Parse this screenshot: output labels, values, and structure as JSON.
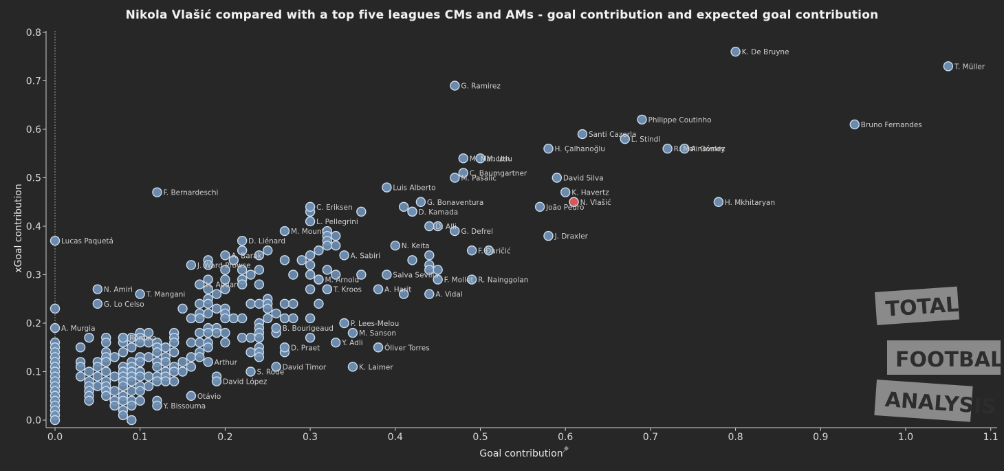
{
  "chart_data": {
    "type": "scatter",
    "title": "Nikola Vlašić compared with a top five leagues CMs and AMs - goal contribution and expected goal contribution",
    "xlabel": "Goal contribution",
    "ylabel": "xGoal contribution",
    "xlim": [
      -0.01,
      1.1
    ],
    "ylim": [
      -0.01,
      0.81
    ],
    "xticks": [
      "0.0",
      "0.1",
      "0.2",
      "0.3",
      "0.4",
      "0.5",
      "0.6",
      "0.7",
      "0.8",
      "0.9",
      "1.0",
      "1.1"
    ],
    "yticks": [
      "0.0",
      "0.1",
      "0.2",
      "0.3",
      "0.4",
      "0.5",
      "0.6",
      "0.7",
      "0.8"
    ],
    "grid": false,
    "colors": {
      "point": "#6f8fb3",
      "point_edge": "#c9dcef",
      "highlight": "#e05a5a",
      "background": "#272727"
    },
    "highlight_player": "N. Vlašić",
    "labeled_points": [
      {
        "name": "K. De Bruyne",
        "x": 0.8,
        "y": 0.76
      },
      {
        "name": "T. Müller",
        "x": 1.05,
        "y": 0.73
      },
      {
        "name": "G. Ramirez",
        "x": 0.47,
        "y": 0.69
      },
      {
        "name": "Philippe Coutinho",
        "x": 0.69,
        "y": 0.62
      },
      {
        "name": "Bruno Fernandes",
        "x": 0.94,
        "y": 0.61
      },
      {
        "name": "Santi Cazorla",
        "x": 0.62,
        "y": 0.59
      },
      {
        "name": "L. Stindl",
        "x": 0.67,
        "y": 0.58
      },
      {
        "name": "A. Gómez",
        "x": 0.74,
        "y": 0.56
      },
      {
        "name": "R. Malinovskiy",
        "x": 0.72,
        "y": 0.56
      },
      {
        "name": "H. Çalhanoğlu",
        "x": 0.58,
        "y": 0.56
      },
      {
        "name": "M. Mancosu",
        "x": 0.48,
        "y": 0.54
      },
      {
        "name": "M. Uth",
        "x": 0.5,
        "y": 0.54
      },
      {
        "name": "C. Baumgartner",
        "x": 0.48,
        "y": 0.51
      },
      {
        "name": "David Silva",
        "x": 0.59,
        "y": 0.5
      },
      {
        "name": "M. Pašalić",
        "x": 0.47,
        "y": 0.5
      },
      {
        "name": "Luis Alberto",
        "x": 0.39,
        "y": 0.48
      },
      {
        "name": "F. Bernardeschi",
        "x": 0.12,
        "y": 0.47
      },
      {
        "name": "K. Havertz",
        "x": 0.6,
        "y": 0.47
      },
      {
        "name": "N. Vlašić",
        "x": 0.61,
        "y": 0.45
      },
      {
        "name": "G. Bonaventura",
        "x": 0.43,
        "y": 0.45
      },
      {
        "name": "H. Mkhitaryan",
        "x": 0.78,
        "y": 0.45
      },
      {
        "name": "C. Eriksen",
        "x": 0.3,
        "y": 0.44
      },
      {
        "name": "João Pedro",
        "x": 0.57,
        "y": 0.44
      },
      {
        "name": "D. Kamada",
        "x": 0.42,
        "y": 0.43
      },
      {
        "name": "L. Pellegrini",
        "x": 0.3,
        "y": 0.41
      },
      {
        "name": "D. Alli",
        "x": 0.44,
        "y": 0.4
      },
      {
        "name": "J. Draxler",
        "x": 0.58,
        "y": 0.38
      },
      {
        "name": "Lucas Paquetá",
        "x": 0.0,
        "y": 0.37
      },
      {
        "name": "D. Liénard",
        "x": 0.22,
        "y": 0.37
      },
      {
        "name": "M. Mount",
        "x": 0.27,
        "y": 0.39
      },
      {
        "name": "A. Barák",
        "x": 0.2,
        "y": 0.34
      },
      {
        "name": "G. Defrel",
        "x": 0.47,
        "y": 0.39
      },
      {
        "name": "N. Keita",
        "x": 0.4,
        "y": 0.36
      },
      {
        "name": "A. Sabiri",
        "x": 0.34,
        "y": 0.34
      },
      {
        "name": "F. Đuričić",
        "x": 0.49,
        "y": 0.35
      },
      {
        "name": "J. Ward-Prowse",
        "x": 0.16,
        "y": 0.32
      },
      {
        "name": "Salva Sevilla",
        "x": 0.39,
        "y": 0.3
      },
      {
        "name": "F. Mollet",
        "x": 0.45,
        "y": 0.29
      },
      {
        "name": "R. Nainggolan",
        "x": 0.49,
        "y": 0.29
      },
      {
        "name": "N. Amiri",
        "x": 0.05,
        "y": 0.27
      },
      {
        "name": "T. Kroos",
        "x": 0.32,
        "y": 0.27
      },
      {
        "name": "M. Arnold",
        "x": 0.31,
        "y": 0.29
      },
      {
        "name": "H. Aouar",
        "x": 0.17,
        "y": 0.28
      },
      {
        "name": "T. Mangani",
        "x": 0.1,
        "y": 0.26
      },
      {
        "name": "A. Harit",
        "x": 0.38,
        "y": 0.27
      },
      {
        "name": "A. Vidal",
        "x": 0.44,
        "y": 0.26
      },
      {
        "name": "G. Lo Celso",
        "x": 0.05,
        "y": 0.24
      },
      {
        "name": "P. Lees-Melou",
        "x": 0.34,
        "y": 0.2
      },
      {
        "name": "A. Murgia",
        "x": 0.0,
        "y": 0.19
      },
      {
        "name": "Rômulo",
        "x": 0.08,
        "y": 0.17
      },
      {
        "name": "B. Bourigeaud",
        "x": 0.26,
        "y": 0.19
      },
      {
        "name": "M. Sanson",
        "x": 0.35,
        "y": 0.18
      },
      {
        "name": "D. Praet",
        "x": 0.27,
        "y": 0.15
      },
      {
        "name": "Y. Adli",
        "x": 0.33,
        "y": 0.16
      },
      {
        "name": "Óliver Torres",
        "x": 0.38,
        "y": 0.15
      },
      {
        "name": "David Timor",
        "x": 0.26,
        "y": 0.11
      },
      {
        "name": "K. Laimer",
        "x": 0.35,
        "y": 0.11
      },
      {
        "name": "Arthur",
        "x": 0.18,
        "y": 0.12
      },
      {
        "name": "S. Rode",
        "x": 0.23,
        "y": 0.1
      },
      {
        "name": "Otávio",
        "x": 0.16,
        "y": 0.05
      },
      {
        "name": "David López",
        "x": 0.19,
        "y": 0.08
      },
      {
        "name": "Y. Bissouma",
        "x": 0.12,
        "y": 0.03
      }
    ],
    "unlabeled_points": [
      [
        0.0,
        0.23
      ],
      [
        0.0,
        0.16
      ],
      [
        0.0,
        0.15
      ],
      [
        0.0,
        0.14
      ],
      [
        0.0,
        0.13
      ],
      [
        0.0,
        0.12
      ],
      [
        0.0,
        0.11
      ],
      [
        0.0,
        0.1
      ],
      [
        0.0,
        0.09
      ],
      [
        0.0,
        0.08
      ],
      [
        0.0,
        0.07
      ],
      [
        0.0,
        0.06
      ],
      [
        0.0,
        0.05
      ],
      [
        0.0,
        0.04
      ],
      [
        0.0,
        0.03
      ],
      [
        0.0,
        0.02
      ],
      [
        0.0,
        0.01
      ],
      [
        0.0,
        0.0
      ],
      [
        0.03,
        0.15
      ],
      [
        0.03,
        0.12
      ],
      [
        0.03,
        0.11
      ],
      [
        0.03,
        0.09
      ],
      [
        0.04,
        0.17
      ],
      [
        0.04,
        0.1
      ],
      [
        0.04,
        0.08
      ],
      [
        0.04,
        0.07
      ],
      [
        0.04,
        0.06
      ],
      [
        0.04,
        0.05
      ],
      [
        0.04,
        0.04
      ],
      [
        0.05,
        0.12
      ],
      [
        0.05,
        0.11
      ],
      [
        0.05,
        0.09
      ],
      [
        0.05,
        0.07
      ],
      [
        0.06,
        0.17
      ],
      [
        0.06,
        0.16
      ],
      [
        0.06,
        0.14
      ],
      [
        0.06,
        0.13
      ],
      [
        0.06,
        0.12
      ],
      [
        0.06,
        0.1
      ],
      [
        0.06,
        0.08
      ],
      [
        0.06,
        0.07
      ],
      [
        0.06,
        0.06
      ],
      [
        0.06,
        0.05
      ],
      [
        0.07,
        0.13
      ],
      [
        0.07,
        0.09
      ],
      [
        0.07,
        0.06
      ],
      [
        0.07,
        0.04
      ],
      [
        0.07,
        0.03
      ],
      [
        0.08,
        0.17
      ],
      [
        0.08,
        0.16
      ],
      [
        0.08,
        0.14
      ],
      [
        0.08,
        0.11
      ],
      [
        0.08,
        0.1
      ],
      [
        0.08,
        0.09
      ],
      [
        0.08,
        0.08
      ],
      [
        0.08,
        0.07
      ],
      [
        0.08,
        0.05
      ],
      [
        0.08,
        0.04
      ],
      [
        0.08,
        0.02
      ],
      [
        0.08,
        0.01
      ],
      [
        0.09,
        0.17
      ],
      [
        0.09,
        0.15
      ],
      [
        0.09,
        0.12
      ],
      [
        0.09,
        0.11
      ],
      [
        0.09,
        0.1
      ],
      [
        0.09,
        0.09
      ],
      [
        0.09,
        0.08
      ],
      [
        0.09,
        0.06
      ],
      [
        0.09,
        0.04
      ],
      [
        0.09,
        0.03
      ],
      [
        0.09,
        0.0
      ],
      [
        0.1,
        0.18
      ],
      [
        0.1,
        0.17
      ],
      [
        0.1,
        0.16
      ],
      [
        0.1,
        0.13
      ],
      [
        0.1,
        0.12
      ],
      [
        0.1,
        0.1
      ],
      [
        0.1,
        0.09
      ],
      [
        0.1,
        0.07
      ],
      [
        0.1,
        0.06
      ],
      [
        0.1,
        0.04
      ],
      [
        0.11,
        0.18
      ],
      [
        0.11,
        0.16
      ],
      [
        0.11,
        0.13
      ],
      [
        0.11,
        0.09
      ],
      [
        0.11,
        0.07
      ],
      [
        0.12,
        0.16
      ],
      [
        0.12,
        0.15
      ],
      [
        0.12,
        0.14
      ],
      [
        0.12,
        0.12
      ],
      [
        0.12,
        0.11
      ],
      [
        0.12,
        0.09
      ],
      [
        0.12,
        0.08
      ],
      [
        0.12,
        0.04
      ],
      [
        0.13,
        0.15
      ],
      [
        0.13,
        0.13
      ],
      [
        0.13,
        0.12
      ],
      [
        0.13,
        0.1
      ],
      [
        0.13,
        0.09
      ],
      [
        0.13,
        0.08
      ],
      [
        0.14,
        0.18
      ],
      [
        0.14,
        0.17
      ],
      [
        0.14,
        0.16
      ],
      [
        0.14,
        0.14
      ],
      [
        0.14,
        0.11
      ],
      [
        0.14,
        0.1
      ],
      [
        0.14,
        0.08
      ],
      [
        0.15,
        0.23
      ],
      [
        0.15,
        0.12
      ],
      [
        0.15,
        0.1
      ],
      [
        0.16,
        0.21
      ],
      [
        0.16,
        0.16
      ],
      [
        0.16,
        0.13
      ],
      [
        0.16,
        0.11
      ],
      [
        0.17,
        0.24
      ],
      [
        0.17,
        0.22
      ],
      [
        0.17,
        0.21
      ],
      [
        0.17,
        0.18
      ],
      [
        0.17,
        0.16
      ],
      [
        0.17,
        0.14
      ],
      [
        0.17,
        0.13
      ],
      [
        0.18,
        0.33
      ],
      [
        0.18,
        0.32
      ],
      [
        0.18,
        0.29
      ],
      [
        0.18,
        0.27
      ],
      [
        0.18,
        0.25
      ],
      [
        0.18,
        0.24
      ],
      [
        0.18,
        0.22
      ],
      [
        0.18,
        0.19
      ],
      [
        0.18,
        0.18
      ],
      [
        0.18,
        0.16
      ],
      [
        0.18,
        0.15
      ],
      [
        0.19,
        0.26
      ],
      [
        0.19,
        0.23
      ],
      [
        0.19,
        0.19
      ],
      [
        0.19,
        0.18
      ],
      [
        0.19,
        0.09
      ],
      [
        0.2,
        0.31
      ],
      [
        0.2,
        0.29
      ],
      [
        0.2,
        0.27
      ],
      [
        0.2,
        0.23
      ],
      [
        0.2,
        0.22
      ],
      [
        0.2,
        0.21
      ],
      [
        0.2,
        0.18
      ],
      [
        0.2,
        0.16
      ],
      [
        0.21,
        0.33
      ],
      [
        0.21,
        0.21
      ],
      [
        0.22,
        0.35
      ],
      [
        0.22,
        0.31
      ],
      [
        0.22,
        0.29
      ],
      [
        0.22,
        0.28
      ],
      [
        0.22,
        0.21
      ],
      [
        0.22,
        0.17
      ],
      [
        0.23,
        0.3
      ],
      [
        0.23,
        0.24
      ],
      [
        0.23,
        0.17
      ],
      [
        0.23,
        0.14
      ],
      [
        0.24,
        0.34
      ],
      [
        0.24,
        0.31
      ],
      [
        0.24,
        0.28
      ],
      [
        0.24,
        0.24
      ],
      [
        0.24,
        0.2
      ],
      [
        0.24,
        0.19
      ],
      [
        0.24,
        0.18
      ],
      [
        0.24,
        0.17
      ],
      [
        0.24,
        0.15
      ],
      [
        0.24,
        0.14
      ],
      [
        0.24,
        0.13
      ],
      [
        0.25,
        0.35
      ],
      [
        0.25,
        0.25
      ],
      [
        0.25,
        0.24
      ],
      [
        0.25,
        0.23
      ],
      [
        0.25,
        0.21
      ],
      [
        0.26,
        0.22
      ],
      [
        0.26,
        0.18
      ],
      [
        0.27,
        0.33
      ],
      [
        0.27,
        0.24
      ],
      [
        0.27,
        0.21
      ],
      [
        0.27,
        0.14
      ],
      [
        0.28,
        0.3
      ],
      [
        0.28,
        0.24
      ],
      [
        0.28,
        0.21
      ],
      [
        0.29,
        0.33
      ],
      [
        0.3,
        0.43
      ],
      [
        0.3,
        0.34
      ],
      [
        0.3,
        0.32
      ],
      [
        0.3,
        0.3
      ],
      [
        0.3,
        0.27
      ],
      [
        0.3,
        0.21
      ],
      [
        0.3,
        0.17
      ],
      [
        0.31,
        0.35
      ],
      [
        0.31,
        0.29
      ],
      [
        0.31,
        0.24
      ],
      [
        0.32,
        0.39
      ],
      [
        0.32,
        0.38
      ],
      [
        0.32,
        0.37
      ],
      [
        0.32,
        0.36
      ],
      [
        0.32,
        0.31
      ],
      [
        0.32,
        0.27
      ],
      [
        0.33,
        0.38
      ],
      [
        0.33,
        0.36
      ],
      [
        0.33,
        0.3
      ],
      [
        0.36,
        0.43
      ],
      [
        0.36,
        0.3
      ],
      [
        0.41,
        0.44
      ],
      [
        0.41,
        0.26
      ],
      [
        0.42,
        0.43
      ],
      [
        0.42,
        0.33
      ],
      [
        0.44,
        0.34
      ],
      [
        0.44,
        0.32
      ],
      [
        0.44,
        0.31
      ],
      [
        0.45,
        0.4
      ],
      [
        0.45,
        0.31
      ],
      [
        0.51,
        0.35
      ]
    ]
  }
}
